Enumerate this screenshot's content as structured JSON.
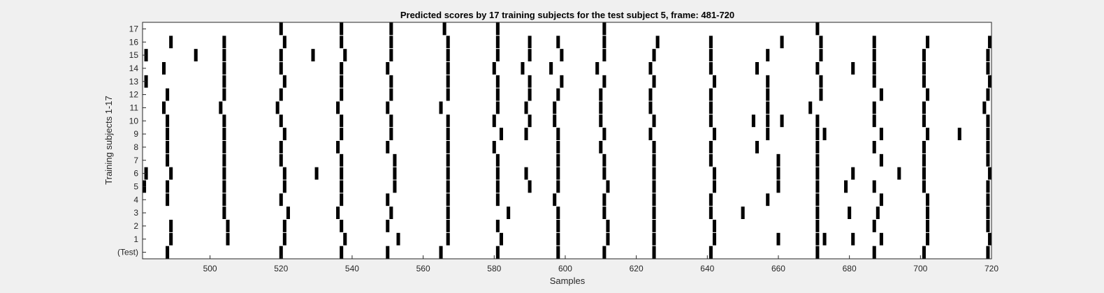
{
  "chart_data": {
    "type": "heatmap",
    "title": "Predicted scores by 17 training subjects for the test subject 5, frame: 481-720",
    "xlabel": "Samples",
    "ylabel": "Training subjects 1-17",
    "xlim": [
      481,
      720
    ],
    "x_ticks": [
      500,
      520,
      540,
      560,
      580,
      600,
      620,
      640,
      660,
      680,
      700,
      720
    ],
    "y_tick_labels": [
      "(Test)",
      "1",
      "2",
      "3",
      "4",
      "5",
      "6",
      "7",
      "8",
      "9",
      "10",
      "11",
      "12",
      "13",
      "14",
      "15",
      "16",
      "17"
    ],
    "colors": {
      "event": "#000000",
      "background": "#ffffff",
      "figure_bg": "#f0f0f0"
    },
    "rows": [
      {
        "label": "(Test)",
        "events": [
          488,
          520,
          537,
          550,
          565,
          581,
          598,
          611,
          625,
          641,
          671,
          687,
          701,
          719
        ]
      },
      {
        "label": "1",
        "events": [
          489,
          505,
          521,
          538,
          553,
          567,
          582,
          598,
          612,
          625,
          642,
          660,
          671,
          673,
          681,
          689,
          702,
          720
        ]
      },
      {
        "label": "2",
        "events": [
          489,
          505,
          521,
          537,
          550,
          567,
          581,
          598,
          612,
          625,
          642,
          671,
          687,
          702,
          719
        ]
      },
      {
        "label": "3",
        "events": [
          504,
          522,
          536,
          551,
          567,
          584,
          598,
          611,
          625,
          641,
          650,
          671,
          680,
          688,
          702,
          719
        ]
      },
      {
        "label": "4",
        "events": [
          488,
          504,
          520,
          537,
          550,
          567,
          581,
          597,
          611,
          625,
          641,
          657,
          671,
          689,
          702,
          719
        ]
      },
      {
        "label": "5",
        "events": [
          481,
          488,
          504,
          521,
          537,
          552,
          567,
          581,
          590,
          598,
          612,
          625,
          642,
          660,
          671,
          679,
          687,
          701,
          719
        ]
      },
      {
        "label": "6",
        "events": [
          482,
          489,
          504,
          521,
          530,
          537,
          552,
          567,
          581,
          589,
          598,
          611,
          625,
          642,
          660,
          671,
          681,
          694,
          701,
          720
        ]
      },
      {
        "label": "7",
        "events": [
          488,
          504,
          520,
          537,
          552,
          567,
          581,
          598,
          611,
          625,
          641,
          660,
          671,
          689,
          701,
          719
        ]
      },
      {
        "label": "8",
        "events": [
          488,
          504,
          520,
          536,
          550,
          567,
          580,
          598,
          610,
          625,
          641,
          654,
          671,
          687,
          701,
          719
        ]
      },
      {
        "label": "9",
        "events": [
          488,
          504,
          521,
          537,
          551,
          567,
          582,
          589,
          598,
          611,
          624,
          642,
          657,
          671,
          673,
          689,
          702,
          711,
          719
        ]
      },
      {
        "label": "10",
        "events": [
          488,
          504,
          520,
          537,
          551,
          567,
          580,
          590,
          597,
          610,
          625,
          641,
          653,
          657,
          661,
          671,
          687,
          701,
          719
        ]
      },
      {
        "label": "11",
        "events": [
          487,
          503,
          519,
          536,
          550,
          565,
          581,
          589,
          597,
          610,
          624,
          641,
          657,
          669,
          687,
          701,
          718
        ]
      },
      {
        "label": "12",
        "events": [
          488,
          504,
          520,
          537,
          551,
          567,
          581,
          590,
          598,
          610,
          624,
          641,
          657,
          672,
          689,
          702,
          719
        ]
      },
      {
        "label": "13",
        "events": [
          482,
          504,
          521,
          537,
          551,
          567,
          581,
          590,
          599,
          611,
          625,
          642,
          657,
          672,
          687,
          701,
          720
        ]
      },
      {
        "label": "14",
        "events": [
          487,
          504,
          520,
          537,
          550,
          567,
          580,
          588,
          596,
          609,
          624,
          641,
          654,
          671,
          681,
          687,
          701,
          719
        ]
      },
      {
        "label": "15",
        "events": [
          482,
          496,
          504,
          520,
          529,
          538,
          551,
          567,
          581,
          590,
          599,
          611,
          625,
          641,
          657,
          672,
          687,
          701,
          719
        ]
      },
      {
        "label": "16",
        "events": [
          489,
          504,
          521,
          537,
          551,
          567,
          581,
          590,
          598,
          611,
          626,
          641,
          661,
          672,
          687,
          702,
          720
        ]
      },
      {
        "label": "17",
        "events": [
          520,
          537,
          551,
          566,
          581,
          611,
          671
        ]
      }
    ]
  }
}
